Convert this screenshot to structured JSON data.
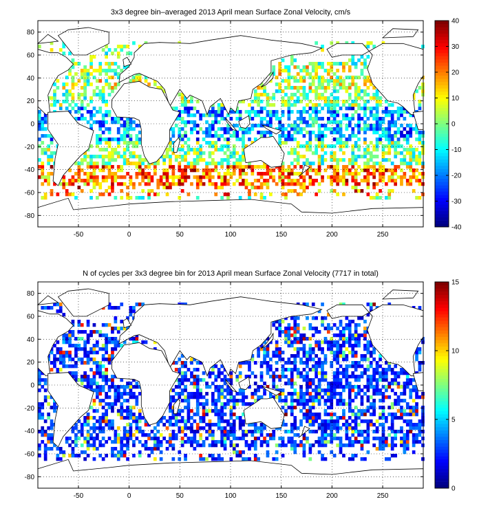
{
  "charts": [
    {
      "title": "3x3 degree bin–averaged 2013 April mean Surface Zonal Velocity, cm/s",
      "type": "heatmap",
      "colormap": "jet",
      "xlim": [
        -90,
        290
      ],
      "ylim": [
        -90,
        90
      ],
      "xticks": [
        -50,
        0,
        50,
        100,
        150,
        200,
        250
      ],
      "yticks": [
        -80,
        -60,
        -40,
        -20,
        0,
        20,
        40,
        60,
        80
      ],
      "clim": [
        -40,
        40
      ],
      "colorbar_ticks": [
        -40,
        -30,
        -20,
        -10,
        0,
        10,
        20,
        30,
        40
      ],
      "grid": "dotted"
    },
    {
      "title": "N of cycles per 3x3 degree bin for 2013 April mean Surface Zonal Velocity (7717 in total)",
      "type": "heatmap",
      "colormap": "jet",
      "xlim": [
        -90,
        290
      ],
      "ylim": [
        -90,
        90
      ],
      "xticks": [
        -50,
        0,
        50,
        100,
        150,
        200,
        250
      ],
      "yticks": [
        -80,
        -60,
        -40,
        -20,
        0,
        20,
        40,
        60,
        80
      ],
      "clim": [
        0,
        15
      ],
      "colorbar_ticks": [
        0,
        5,
        10,
        15
      ],
      "grid": "dotted"
    }
  ],
  "chart_data": [
    {
      "type": "heatmap",
      "title": "3x3 degree bin–averaged 2013 April mean Surface Zonal Velocity, cm/s",
      "xlabel": "",
      "ylabel": "",
      "xlim": [
        -90,
        290
      ],
      "ylim": [
        -90,
        90
      ],
      "bin_size_deg": 3,
      "value_range": [
        -40,
        40
      ],
      "units": "cm/s",
      "legend": "colorbar right",
      "grid": true
    },
    {
      "type": "heatmap",
      "title": "N of cycles per 3x3 degree bin for 2013 April mean Surface Zonal Velocity (7717 in total)",
      "xlabel": "",
      "ylabel": "",
      "xlim": [
        -90,
        290
      ],
      "ylim": [
        -90,
        90
      ],
      "bin_size_deg": 3,
      "value_range": [
        0,
        15
      ],
      "total_cycles": 7717,
      "legend": "colorbar right",
      "grid": true
    }
  ]
}
